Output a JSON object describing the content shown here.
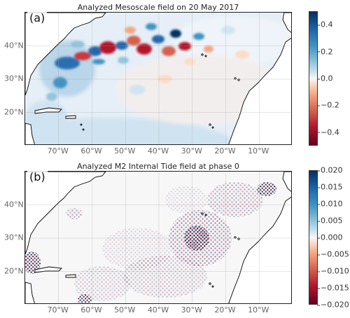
{
  "panel_a": {
    "label": "(a)",
    "title": "Analyzed Mesoscale field on 20 May 2017",
    "colorbar": {
      "ticks": [
        "0.4",
        "0.2",
        "0.0",
        "−0.2",
        "−0.4"
      ],
      "values": [
        0.4,
        0.2,
        0.0,
        -0.2,
        -0.4
      ],
      "range": [
        -0.5,
        0.5
      ],
      "colormap": "RdBu_r"
    }
  },
  "panel_b": {
    "label": "(b)",
    "title": "Analyzed M2 Internal Tide field at phase 0",
    "colorbar": {
      "ticks": [
        "0.020",
        "0.015",
        "0.010",
        "0.005",
        "0.000",
        "−0.005",
        "−0.010",
        "−0.015",
        "−0.020"
      ],
      "values": [
        0.02,
        0.015,
        0.01,
        0.005,
        0.0,
        -0.005,
        -0.01,
        -0.015,
        -0.02
      ],
      "range": [
        -0.02,
        0.02
      ],
      "colormap": "RdBu_r"
    }
  },
  "map_extent": {
    "lon": [
      -80,
      0
    ],
    "lat": [
      10,
      50
    ]
  },
  "lon_ticks": {
    "labels": [
      "70°W",
      "60°W",
      "50°W",
      "40°W",
      "30°W",
      "20°W",
      "10°W"
    ],
    "values": [
      -70,
      -60,
      -50,
      -40,
      -30,
      -20,
      -10
    ]
  },
  "lat_ticks": {
    "labels": [
      "40°N",
      "30°N",
      "20°N"
    ],
    "values": [
      40,
      30,
      20
    ]
  },
  "colors": {
    "blue": "#053061",
    "red": "#67001f",
    "neutral": "#f7f7f7",
    "coast": "#000000"
  }
}
